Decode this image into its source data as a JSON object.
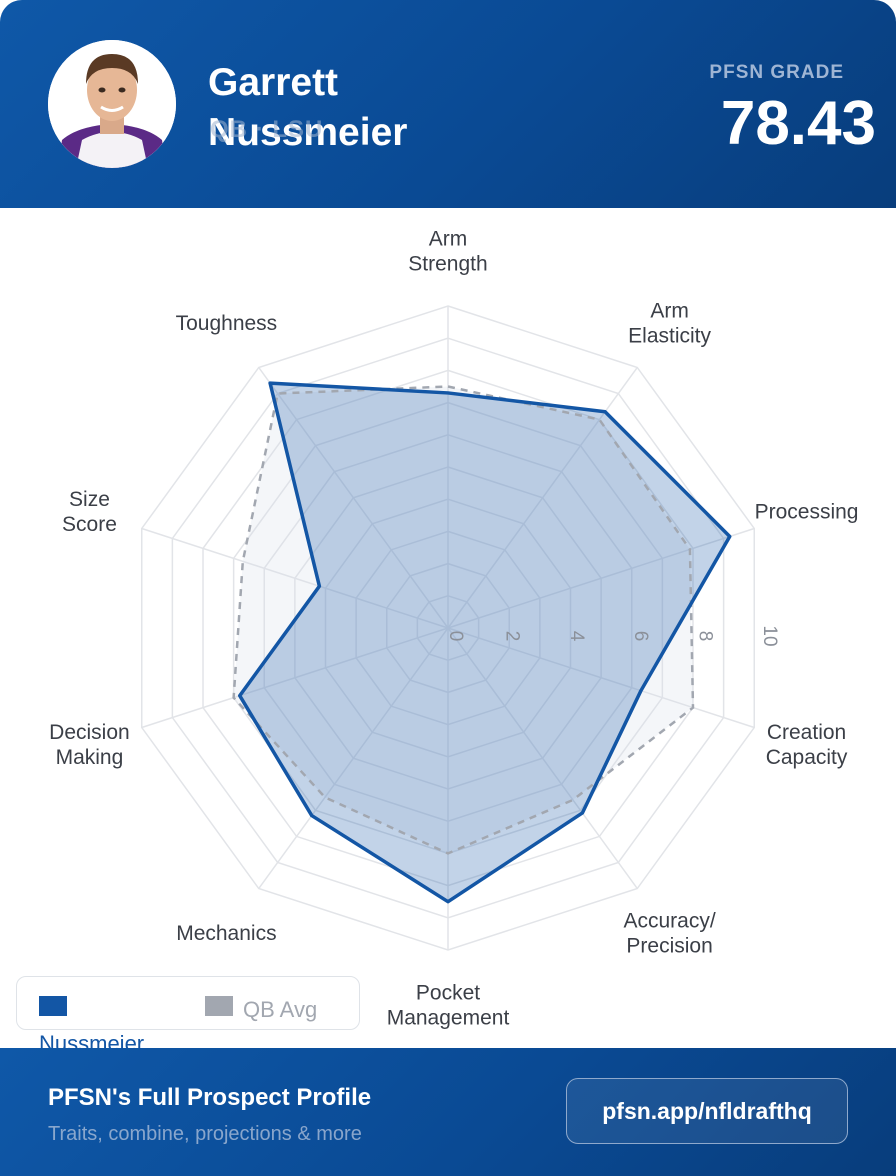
{
  "header": {
    "player_name": "Garrett Nussmeier",
    "player_sub": "QB · LSU",
    "grade_label": "PFSN GRADE",
    "grade_value": "78.43"
  },
  "colors": {
    "brand_blue": "#0a4a94",
    "player_series": "#1356a5",
    "avg_series": "#a2a7b0",
    "grid": "#e2e4e8"
  },
  "chart_data": {
    "type": "radar",
    "title": "",
    "axes": [
      "Arm Strength",
      "Arm Elasticity",
      "Processing",
      "Creation Capacity",
      "Accuracy/ Precision",
      "Pocket Management",
      "Mechanics",
      "Decision Making",
      "Size Score",
      "Toughness"
    ],
    "axis_label_lines": [
      [
        "Arm",
        "Strength"
      ],
      [
        "Arm",
        "Elasticity"
      ],
      [
        "Processing"
      ],
      [
        "Creation",
        "Capacity"
      ],
      [
        "Accuracy/",
        "Precision"
      ],
      [
        "Pocket",
        "Management"
      ],
      [
        "Mechanics"
      ],
      [
        "Decision",
        "Making"
      ],
      [
        "Size",
        "Score"
      ],
      [
        "Toughness"
      ]
    ],
    "radial_range": [
      0,
      10
    ],
    "radial_ticks": [
      0,
      2,
      4,
      6,
      8,
      10
    ],
    "grid": true,
    "legend_position": "bottom-left",
    "series": [
      {
        "name": "Nussmeier",
        "values": [
          7.3,
          8.3,
          9.2,
          6.3,
          7.1,
          8.5,
          7.2,
          6.8,
          4.2,
          9.4
        ],
        "color": "#1356a5",
        "style": "solid-filled"
      },
      {
        "name": "QB Avg",
        "values": [
          7.5,
          8.0,
          7.9,
          8.0,
          6.6,
          7.0,
          6.5,
          7.0,
          6.7,
          9.0
        ],
        "color": "#a2a7b0",
        "style": "dashed"
      }
    ]
  },
  "legend": {
    "player_label": "Nussmeier",
    "avg_label": "QB Avg"
  },
  "footer": {
    "title": "PFSN's Full Prospect Profile",
    "subtitle": "Traits, combine, projections & more",
    "link": "pfsn.app/nfldrafthq"
  }
}
